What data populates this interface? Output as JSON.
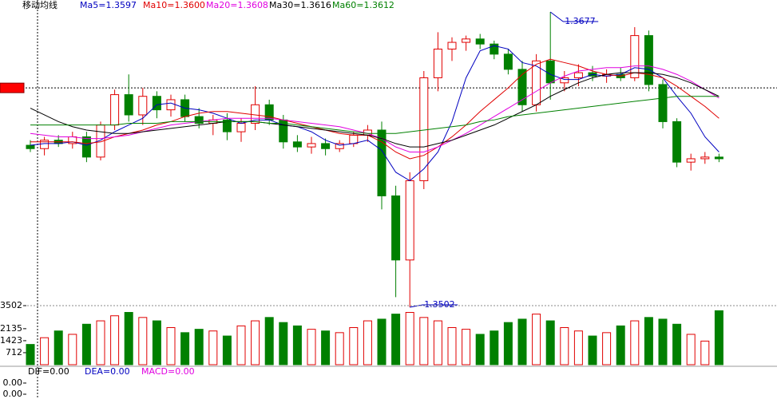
{
  "chart_data": [
    {
      "type": "candlestick",
      "title": "移动均线",
      "open": [
        1.3598,
        1.3596,
        1.3601,
        1.3599,
        1.3603,
        1.3591,
        1.361,
        1.3628,
        1.3616,
        1.3627,
        1.3619,
        1.3625,
        1.3615,
        1.3611,
        1.3613,
        1.3606,
        1.3611,
        1.3622,
        1.3613,
        1.36,
        1.3597,
        1.3599,
        1.3596,
        1.3599,
        1.3604,
        1.3607,
        1.3568,
        1.353,
        1.3577,
        1.3638,
        1.3655,
        1.3659,
        1.3661,
        1.3658,
        1.3652,
        1.3643,
        1.3622,
        1.3648,
        1.3635,
        1.3638,
        1.3641,
        1.3639,
        1.364,
        1.3638,
        1.3663,
        1.3634,
        1.3612,
        1.3588,
        1.359,
        1.3591
      ],
      "high": [
        1.3601,
        1.3603,
        1.3604,
        1.3606,
        1.3606,
        1.3612,
        1.3631,
        1.364,
        1.3632,
        1.363,
        1.3628,
        1.3628,
        1.362,
        1.3616,
        1.3617,
        1.3614,
        1.3633,
        1.3625,
        1.3616,
        1.3604,
        1.3603,
        1.3602,
        1.3601,
        1.3606,
        1.361,
        1.3612,
        1.3574,
        1.3582,
        1.3642,
        1.3665,
        1.3662,
        1.3663,
        1.3664,
        1.366,
        1.3655,
        1.3648,
        1.3652,
        1.3677,
        1.3642,
        1.3646,
        1.3645,
        1.3643,
        1.3644,
        1.3668,
        1.3666,
        1.3637,
        1.3614,
        1.3593,
        1.3594,
        1.3593
      ],
      "low": [
        1.3594,
        1.3592,
        1.3597,
        1.3596,
        1.3588,
        1.3589,
        1.3607,
        1.3612,
        1.361,
        1.3614,
        1.3615,
        1.3612,
        1.3608,
        1.3604,
        1.3601,
        1.36,
        1.3607,
        1.361,
        1.3596,
        1.3594,
        1.3593,
        1.3592,
        1.3594,
        1.3597,
        1.36,
        1.356,
        1.3508,
        1.3502,
        1.3572,
        1.363,
        1.3648,
        1.3654,
        1.3655,
        1.3649,
        1.364,
        1.3618,
        1.3618,
        1.3625,
        1.363,
        1.3633,
        1.3636,
        1.3635,
        1.3636,
        1.3636,
        1.363,
        1.3608,
        1.3585,
        1.3583,
        1.3587,
        1.3588
      ],
      "close": [
        1.3596,
        1.3601,
        1.3599,
        1.3603,
        1.3591,
        1.361,
        1.3628,
        1.3616,
        1.3627,
        1.3619,
        1.3625,
        1.3615,
        1.3611,
        1.3613,
        1.3606,
        1.3611,
        1.3622,
        1.3613,
        1.36,
        1.3597,
        1.3599,
        1.3596,
        1.3599,
        1.3604,
        1.3607,
        1.3568,
        1.353,
        1.3577,
        1.3638,
        1.3655,
        1.3659,
        1.3661,
        1.3658,
        1.3652,
        1.3643,
        1.3622,
        1.3648,
        1.3635,
        1.3638,
        1.3641,
        1.3639,
        1.364,
        1.3638,
        1.3663,
        1.3634,
        1.3612,
        1.3588,
        1.359,
        1.3591,
        1.359
      ],
      "up_color": "#e00000",
      "down_color": "#008000",
      "series": [
        {
          "name": "Ma5=1.3597",
          "color": "#0000c0",
          "values": [
            1.3598,
            1.3599,
            1.3599,
            1.36,
            1.3598,
            1.3601,
            1.3606,
            1.361,
            1.3614,
            1.3622,
            1.3623,
            1.362,
            1.3619,
            1.3617,
            1.3614,
            1.3611,
            1.3613,
            1.3613,
            1.361,
            1.3609,
            1.3606,
            1.3601,
            1.3598,
            1.3599,
            1.3601,
            1.3595,
            1.3582,
            1.3577,
            1.3584,
            1.3594,
            1.3612,
            1.3638,
            1.3654,
            1.3657,
            1.3655,
            1.3647,
            1.3645,
            1.364,
            1.3637,
            1.3637,
            1.364,
            1.3639,
            1.364,
            1.3644,
            1.3643,
            1.3638,
            1.3627,
            1.3617,
            1.3603,
            1.3594
          ]
        },
        {
          "name": "Ma10=1.3600",
          "color": "#e00000",
          "values": [
            1.36,
            1.36,
            1.36,
            1.36,
            1.3599,
            1.36,
            1.3603,
            1.3605,
            1.3607,
            1.361,
            1.3612,
            1.3615,
            1.3617,
            1.3618,
            1.3618,
            1.3617,
            1.3616,
            1.3615,
            1.3613,
            1.3611,
            1.3609,
            1.3607,
            1.3605,
            1.3604,
            1.3604,
            1.36,
            1.3594,
            1.359,
            1.3592,
            1.3597,
            1.3603,
            1.361,
            1.3618,
            1.3625,
            1.3632,
            1.364,
            1.3646,
            1.3649,
            1.3647,
            1.3645,
            1.3642,
            1.364,
            1.3639,
            1.3641,
            1.364,
            1.3638,
            1.3633,
            1.3627,
            1.3621,
            1.3614
          ]
        },
        {
          "name": "Ma20=1.3608",
          "color": "#e000e0",
          "values": [
            1.3605,
            1.3604,
            1.3603,
            1.3603,
            1.3602,
            1.3602,
            1.3603,
            1.3604,
            1.3606,
            1.3608,
            1.361,
            1.3611,
            1.3612,
            1.3613,
            1.3614,
            1.3614,
            1.3614,
            1.3614,
            1.3613,
            1.3612,
            1.3611,
            1.361,
            1.3609,
            1.3607,
            1.3605,
            1.3602,
            1.3597,
            1.3594,
            1.3594,
            1.3597,
            1.3601,
            1.3605,
            1.361,
            1.3615,
            1.362,
            1.3625,
            1.363,
            1.3635,
            1.3639,
            1.3642,
            1.3643,
            1.3644,
            1.3644,
            1.3645,
            1.3645,
            1.3643,
            1.364,
            1.3636,
            1.3631,
            1.3626
          ]
        },
        {
          "name": "Ma30=1.3616",
          "color": "#000000",
          "values": [
            1.362,
            1.3616,
            1.3612,
            1.3609,
            1.3607,
            1.3606,
            1.3605,
            1.3605,
            1.3606,
            1.3607,
            1.3608,
            1.3609,
            1.361,
            1.3611,
            1.3612,
            1.3612,
            1.3612,
            1.3611,
            1.361,
            1.3609,
            1.3608,
            1.3607,
            1.3606,
            1.3605,
            1.3604,
            1.3602,
            1.3599,
            1.3597,
            1.3597,
            1.3599,
            1.3601,
            1.3604,
            1.3607,
            1.361,
            1.3614,
            1.3618,
            1.3622,
            1.3627,
            1.3631,
            1.3635,
            1.3638,
            1.364,
            1.3641,
            1.3641,
            1.3641,
            1.364,
            1.3638,
            1.3635,
            1.3631,
            1.3627
          ]
        },
        {
          "name": "Ma60=1.3612",
          "color": "#008000",
          "values": [
            1.361,
            1.361,
            1.361,
            1.361,
            1.361,
            1.361,
            1.361,
            1.3611,
            1.3611,
            1.3611,
            1.3612,
            1.3612,
            1.3612,
            1.3612,
            1.3612,
            1.3612,
            1.3612,
            1.3611,
            1.3611,
            1.361,
            1.3609,
            1.3608,
            1.3607,
            1.3606,
            1.3605,
            1.3605,
            1.3605,
            1.3606,
            1.3607,
            1.3608,
            1.3609,
            1.361,
            1.3612,
            1.3613,
            1.3615,
            1.3616,
            1.3617,
            1.3618,
            1.3619,
            1.362,
            1.3621,
            1.3622,
            1.3623,
            1.3624,
            1.3625,
            1.3626,
            1.3627,
            1.3627,
            1.3627,
            1.3627
          ]
        }
      ],
      "annotations": [
        1.3677,
        1.3502
      ],
      "cursor_price": 1.3632,
      "ylim": [
        1.3502,
        1.3677
      ]
    },
    {
      "type": "volume",
      "values": [
        1200,
        1600,
        2000,
        1800,
        2400,
        2600,
        2900,
        3100,
        2800,
        2600,
        2200,
        1900,
        2100,
        2000,
        1700,
        2300,
        2600,
        2800,
        2500,
        2300,
        2100,
        2000,
        1900,
        2200,
        2600,
        2700,
        3000,
        3100,
        2800,
        2600,
        2200,
        2100,
        1800,
        2000,
        2500,
        2700,
        3000,
        2600,
        2200,
        2000,
        1700,
        1900,
        2300,
        2600,
        2800,
        2700,
        2400,
        1800,
        1400,
        3200
      ],
      "ylim": [
        0,
        3502
      ],
      "yticks": [
        712,
        1423,
        2135,
        3502
      ]
    },
    {
      "type": "macd",
      "labels": [
        {
          "name": "DIF=0.00",
          "color": "#000000"
        },
        {
          "name": "DEA=0.00",
          "color": "#0000c0"
        },
        {
          "name": "MACD=0.00",
          "color": "#e000e0"
        }
      ],
      "ylim": [
        -0.001,
        0.001
      ],
      "yticks": [
        {
          "value": 0.0005,
          "label": "0.00"
        },
        {
          "value": -0.0002,
          "label": "0.00"
        }
      ]
    }
  ]
}
